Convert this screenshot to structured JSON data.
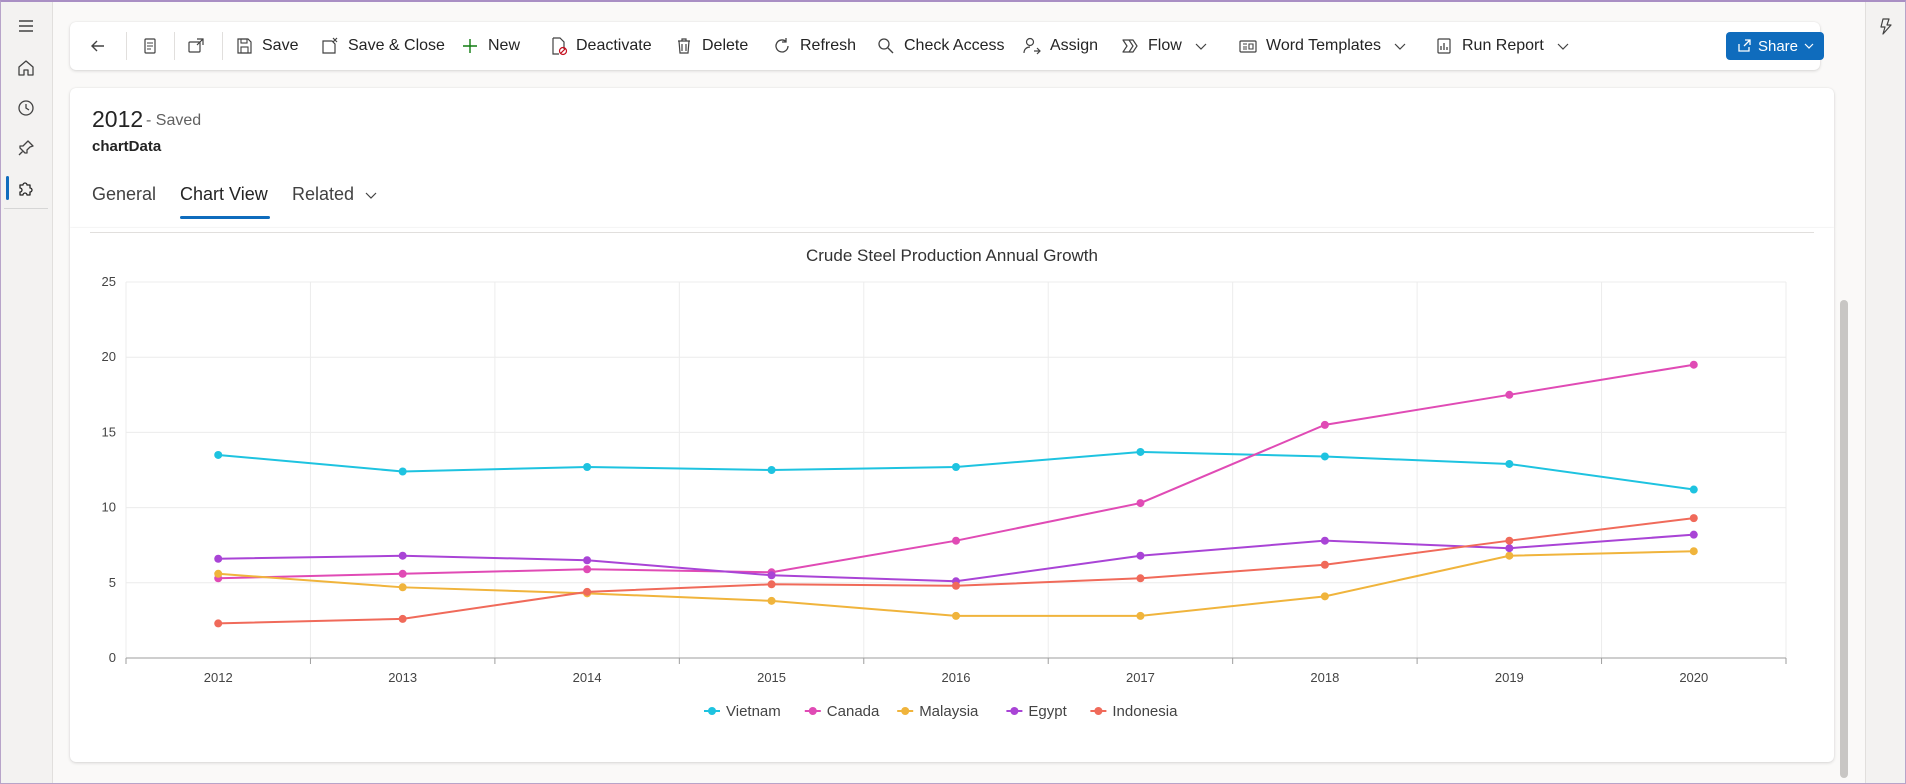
{
  "commandbar": {
    "save": "Save",
    "save_close": "Save & Close",
    "new": "New",
    "deactivate": "Deactivate",
    "delete": "Delete",
    "refresh": "Refresh",
    "check_access": "Check Access",
    "assign": "Assign",
    "flow": "Flow",
    "word_templates": "Word Templates",
    "run_report": "Run Report",
    "share": "Share"
  },
  "record": {
    "title": "2012",
    "status": "- Saved",
    "entity": "chartData"
  },
  "tabs": [
    {
      "label": "General",
      "active": false
    },
    {
      "label": "Chart View",
      "active": true
    },
    {
      "label": "Related",
      "active": false
    }
  ],
  "colors": {
    "accent": "#0f6cbd"
  },
  "chart_data": {
    "type": "line",
    "title": "Crude Steel Production Annual Growth",
    "xlabel": "",
    "ylabel": "",
    "categories": [
      "2012",
      "2013",
      "2014",
      "2015",
      "2016",
      "2017",
      "2018",
      "2019",
      "2020"
    ],
    "ylim": [
      0,
      25
    ],
    "yticks": [
      "0",
      "5",
      "10",
      "15",
      "20",
      "25"
    ],
    "grid": true,
    "legend_position": "bottom",
    "series": [
      {
        "name": "Vietnam",
        "color": "#1ec3e0",
        "values": [
          13.5,
          12.4,
          12.7,
          12.5,
          12.7,
          13.7,
          13.4,
          12.9,
          11.2
        ]
      },
      {
        "name": "Canada",
        "color": "#e04bb5",
        "values": [
          5.3,
          5.6,
          5.9,
          5.7,
          7.8,
          10.3,
          15.5,
          17.5,
          19.5
        ]
      },
      {
        "name": "Malaysia",
        "color": "#f0b43c",
        "values": [
          5.6,
          4.7,
          4.3,
          3.8,
          2.8,
          2.8,
          4.1,
          6.8,
          7.1
        ]
      },
      {
        "name": "Egypt",
        "color": "#a944d6",
        "values": [
          6.6,
          6.8,
          6.5,
          5.5,
          5.1,
          6.8,
          7.8,
          7.3,
          8.2
        ]
      },
      {
        "name": "Indonesia",
        "color": "#f06a5a",
        "values": [
          2.3,
          2.6,
          4.4,
          4.9,
          4.8,
          5.3,
          6.2,
          7.8,
          9.3
        ]
      }
    ]
  }
}
